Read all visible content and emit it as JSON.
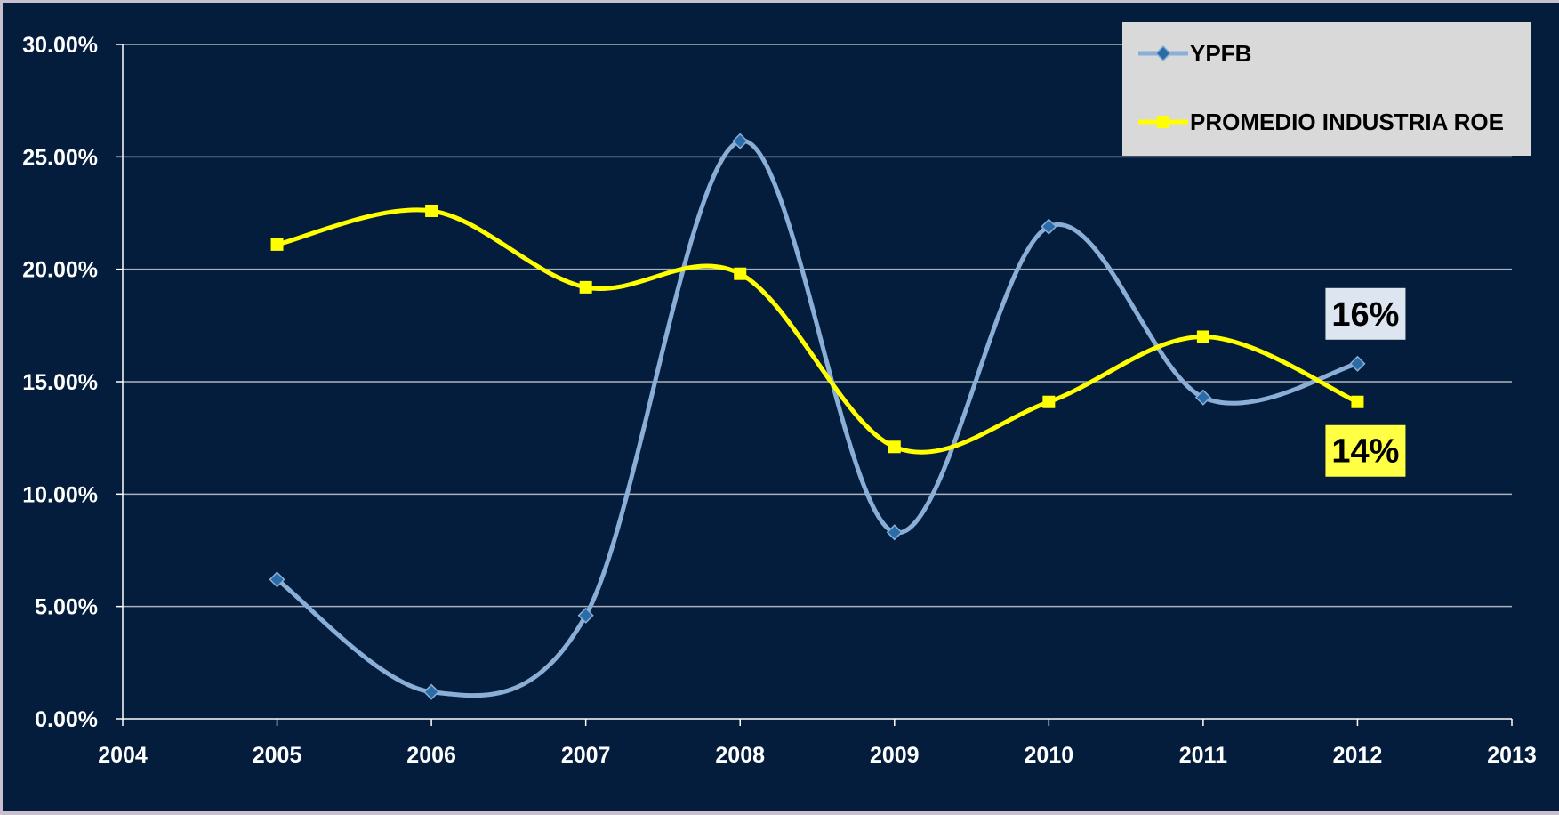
{
  "chart_data": {
    "type": "line",
    "x": [
      2005,
      2006,
      2007,
      2008,
      2009,
      2010,
      2011,
      2012
    ],
    "xlim": [
      2004,
      2013
    ],
    "xticks": [
      "2004",
      "2005",
      "2006",
      "2007",
      "2008",
      "2009",
      "2010",
      "2011",
      "2012",
      "2013"
    ],
    "ylim": [
      0,
      30
    ],
    "yticks": [
      "0.00%",
      "5.00%",
      "10.00%",
      "15.00%",
      "20.00%",
      "25.00%",
      "30.00%"
    ],
    "grid": true,
    "smooth": true,
    "legend_position": "top-right",
    "series": [
      {
        "name": "YPFB",
        "color": "#8aaed6",
        "marker": "diamond",
        "marker_color": "#2a6ca8",
        "values": [
          6.2,
          1.2,
          4.6,
          25.7,
          8.3,
          21.9,
          14.3,
          15.8
        ]
      },
      {
        "name": "PROMEDIO INDUSTRIA ROE",
        "color": "#ffff00",
        "marker": "square",
        "marker_color": "#ffff00",
        "values": [
          21.1,
          22.6,
          19.2,
          19.8,
          12.1,
          14.1,
          17.0,
          14.1
        ]
      }
    ],
    "annotations": [
      {
        "text": "16%",
        "series": "YPFB",
        "background": "#dde6f0"
      },
      {
        "text": "14%",
        "series": "PROMEDIO INDUSTRIA ROE",
        "background": "#ffff44"
      }
    ]
  },
  "colors": {
    "background": "#041d3c",
    "grid": "#a9b3bf",
    "axis": "#ffffff",
    "legend_background": "#d9d9d9"
  }
}
